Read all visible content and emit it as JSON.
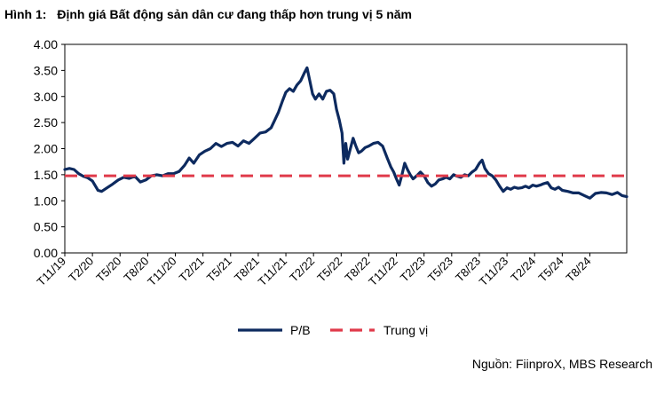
{
  "figure": {
    "label": "Hình 1:",
    "title": "Định giá Bất động sản dân cư đang thấp hơn trung vị 5 năm",
    "source": "Nguồn: FiinproX, MBS Research"
  },
  "colors": {
    "pb_line": "#0d2a5f",
    "median_line": "#e03a4a",
    "axis": "#000000"
  },
  "chart_data": {
    "type": "line",
    "ylim": [
      0,
      4
    ],
    "yticks": [
      "0.00",
      "0.50",
      "1.00",
      "1.50",
      "2.00",
      "2.50",
      "3.00",
      "3.50",
      "4.00"
    ],
    "x_ticks": [
      {
        "label": "T11/19",
        "t": 0
      },
      {
        "label": "T2/20",
        "t": 3
      },
      {
        "label": "T5/20",
        "t": 6
      },
      {
        "label": "T8/20",
        "t": 9
      },
      {
        "label": "T11/20",
        "t": 12
      },
      {
        "label": "T2/21",
        "t": 15
      },
      {
        "label": "T5/21",
        "t": 18
      },
      {
        "label": "T8/21",
        "t": 21
      },
      {
        "label": "T11/21",
        "t": 24
      },
      {
        "label": "T2/22",
        "t": 27
      },
      {
        "label": "T5/22",
        "t": 30
      },
      {
        "label": "T8/22",
        "t": 33
      },
      {
        "label": "T11/22",
        "t": 36
      },
      {
        "label": "T2/23",
        "t": 39
      },
      {
        "label": "T5/23",
        "t": 42
      },
      {
        "label": "T8/23",
        "t": 45
      },
      {
        "label": "T11/23",
        "t": 48
      },
      {
        "label": "T2/24",
        "t": 51
      },
      {
        "label": "T5/24",
        "t": 54
      },
      {
        "label": "T8/24",
        "t": 57
      }
    ],
    "x_range": [
      0,
      61
    ],
    "series": [
      {
        "name": "P/B",
        "style": "solid",
        "points": [
          [
            0,
            1.6
          ],
          [
            0.5,
            1.62
          ],
          [
            1,
            1.6
          ],
          [
            1.5,
            1.52
          ],
          [
            2,
            1.47
          ],
          [
            2.5,
            1.44
          ],
          [
            3,
            1.38
          ],
          [
            3.6,
            1.2
          ],
          [
            4,
            1.18
          ],
          [
            4.6,
            1.25
          ],
          [
            5.2,
            1.32
          ],
          [
            5.8,
            1.4
          ],
          [
            6.4,
            1.45
          ],
          [
            7,
            1.43
          ],
          [
            7.6,
            1.47
          ],
          [
            8.2,
            1.36
          ],
          [
            8.8,
            1.4
          ],
          [
            9.4,
            1.48
          ],
          [
            10,
            1.5
          ],
          [
            10.6,
            1.48
          ],
          [
            11.2,
            1.52
          ],
          [
            11.8,
            1.52
          ],
          [
            12.4,
            1.56
          ],
          [
            13,
            1.68
          ],
          [
            13.5,
            1.82
          ],
          [
            14,
            1.72
          ],
          [
            14.6,
            1.88
          ],
          [
            15.2,
            1.95
          ],
          [
            15.8,
            2.0
          ],
          [
            16.4,
            2.1
          ],
          [
            17,
            2.04
          ],
          [
            17.6,
            2.1
          ],
          [
            18.2,
            2.12
          ],
          [
            18.8,
            2.05
          ],
          [
            19.4,
            2.15
          ],
          [
            20,
            2.1
          ],
          [
            20.6,
            2.2
          ],
          [
            21.2,
            2.3
          ],
          [
            21.8,
            2.32
          ],
          [
            22.4,
            2.4
          ],
          [
            22.8,
            2.55
          ],
          [
            23.2,
            2.7
          ],
          [
            23.6,
            2.9
          ],
          [
            24,
            3.08
          ],
          [
            24.4,
            3.15
          ],
          [
            24.8,
            3.1
          ],
          [
            25.2,
            3.22
          ],
          [
            25.6,
            3.3
          ],
          [
            26,
            3.45
          ],
          [
            26.3,
            3.55
          ],
          [
            26.6,
            3.3
          ],
          [
            26.9,
            3.05
          ],
          [
            27.2,
            2.95
          ],
          [
            27.6,
            3.05
          ],
          [
            28,
            2.95
          ],
          [
            28.4,
            3.1
          ],
          [
            28.8,
            3.12
          ],
          [
            29.2,
            3.05
          ],
          [
            29.5,
            2.75
          ],
          [
            29.8,
            2.55
          ],
          [
            30.1,
            2.3
          ],
          [
            30.3,
            1.72
          ],
          [
            30.5,
            2.1
          ],
          [
            30.7,
            1.8
          ],
          [
            31,
            2.0
          ],
          [
            31.3,
            2.2
          ],
          [
            31.6,
            2.05
          ],
          [
            31.9,
            1.92
          ],
          [
            32.2,
            1.95
          ],
          [
            32.6,
            2.02
          ],
          [
            33,
            2.05
          ],
          [
            33.5,
            2.1
          ],
          [
            34,
            2.12
          ],
          [
            34.5,
            2.05
          ],
          [
            35,
            1.82
          ],
          [
            35.4,
            1.65
          ],
          [
            35.7,
            1.55
          ],
          [
            36,
            1.42
          ],
          [
            36.3,
            1.3
          ],
          [
            36.6,
            1.5
          ],
          [
            36.9,
            1.72
          ],
          [
            37.2,
            1.6
          ],
          [
            37.5,
            1.5
          ],
          [
            37.8,
            1.42
          ],
          [
            38.2,
            1.48
          ],
          [
            38.6,
            1.55
          ],
          [
            39,
            1.48
          ],
          [
            39.4,
            1.35
          ],
          [
            39.8,
            1.28
          ],
          [
            40.2,
            1.32
          ],
          [
            40.6,
            1.4
          ],
          [
            41,
            1.42
          ],
          [
            41.4,
            1.45
          ],
          [
            41.8,
            1.42
          ],
          [
            42.2,
            1.5
          ],
          [
            42.6,
            1.47
          ],
          [
            43,
            1.45
          ],
          [
            43.4,
            1.5
          ],
          [
            43.8,
            1.48
          ],
          [
            44.2,
            1.55
          ],
          [
            44.6,
            1.6
          ],
          [
            45,
            1.72
          ],
          [
            45.3,
            1.78
          ],
          [
            45.6,
            1.62
          ],
          [
            46,
            1.52
          ],
          [
            46.4,
            1.48
          ],
          [
            46.8,
            1.4
          ],
          [
            47.2,
            1.28
          ],
          [
            47.6,
            1.18
          ],
          [
            48,
            1.25
          ],
          [
            48.4,
            1.22
          ],
          [
            48.8,
            1.26
          ],
          [
            49.2,
            1.24
          ],
          [
            49.6,
            1.25
          ],
          [
            50,
            1.28
          ],
          [
            50.4,
            1.25
          ],
          [
            50.8,
            1.3
          ],
          [
            51.2,
            1.28
          ],
          [
            51.6,
            1.3
          ],
          [
            52,
            1.33
          ],
          [
            52.4,
            1.35
          ],
          [
            52.8,
            1.25
          ],
          [
            53.2,
            1.22
          ],
          [
            53.6,
            1.26
          ],
          [
            54,
            1.2
          ],
          [
            54.6,
            1.18
          ],
          [
            55.2,
            1.15
          ],
          [
            55.8,
            1.15
          ],
          [
            56.4,
            1.1
          ],
          [
            57,
            1.05
          ],
          [
            57.6,
            1.14
          ],
          [
            58.2,
            1.16
          ],
          [
            58.8,
            1.15
          ],
          [
            59.4,
            1.12
          ],
          [
            60,
            1.16
          ],
          [
            60.5,
            1.1
          ],
          [
            61,
            1.08
          ]
        ]
      },
      {
        "name": "Trung vị",
        "style": "dashed",
        "points": [
          [
            0,
            1.48
          ],
          [
            61,
            1.48
          ]
        ]
      }
    ]
  }
}
